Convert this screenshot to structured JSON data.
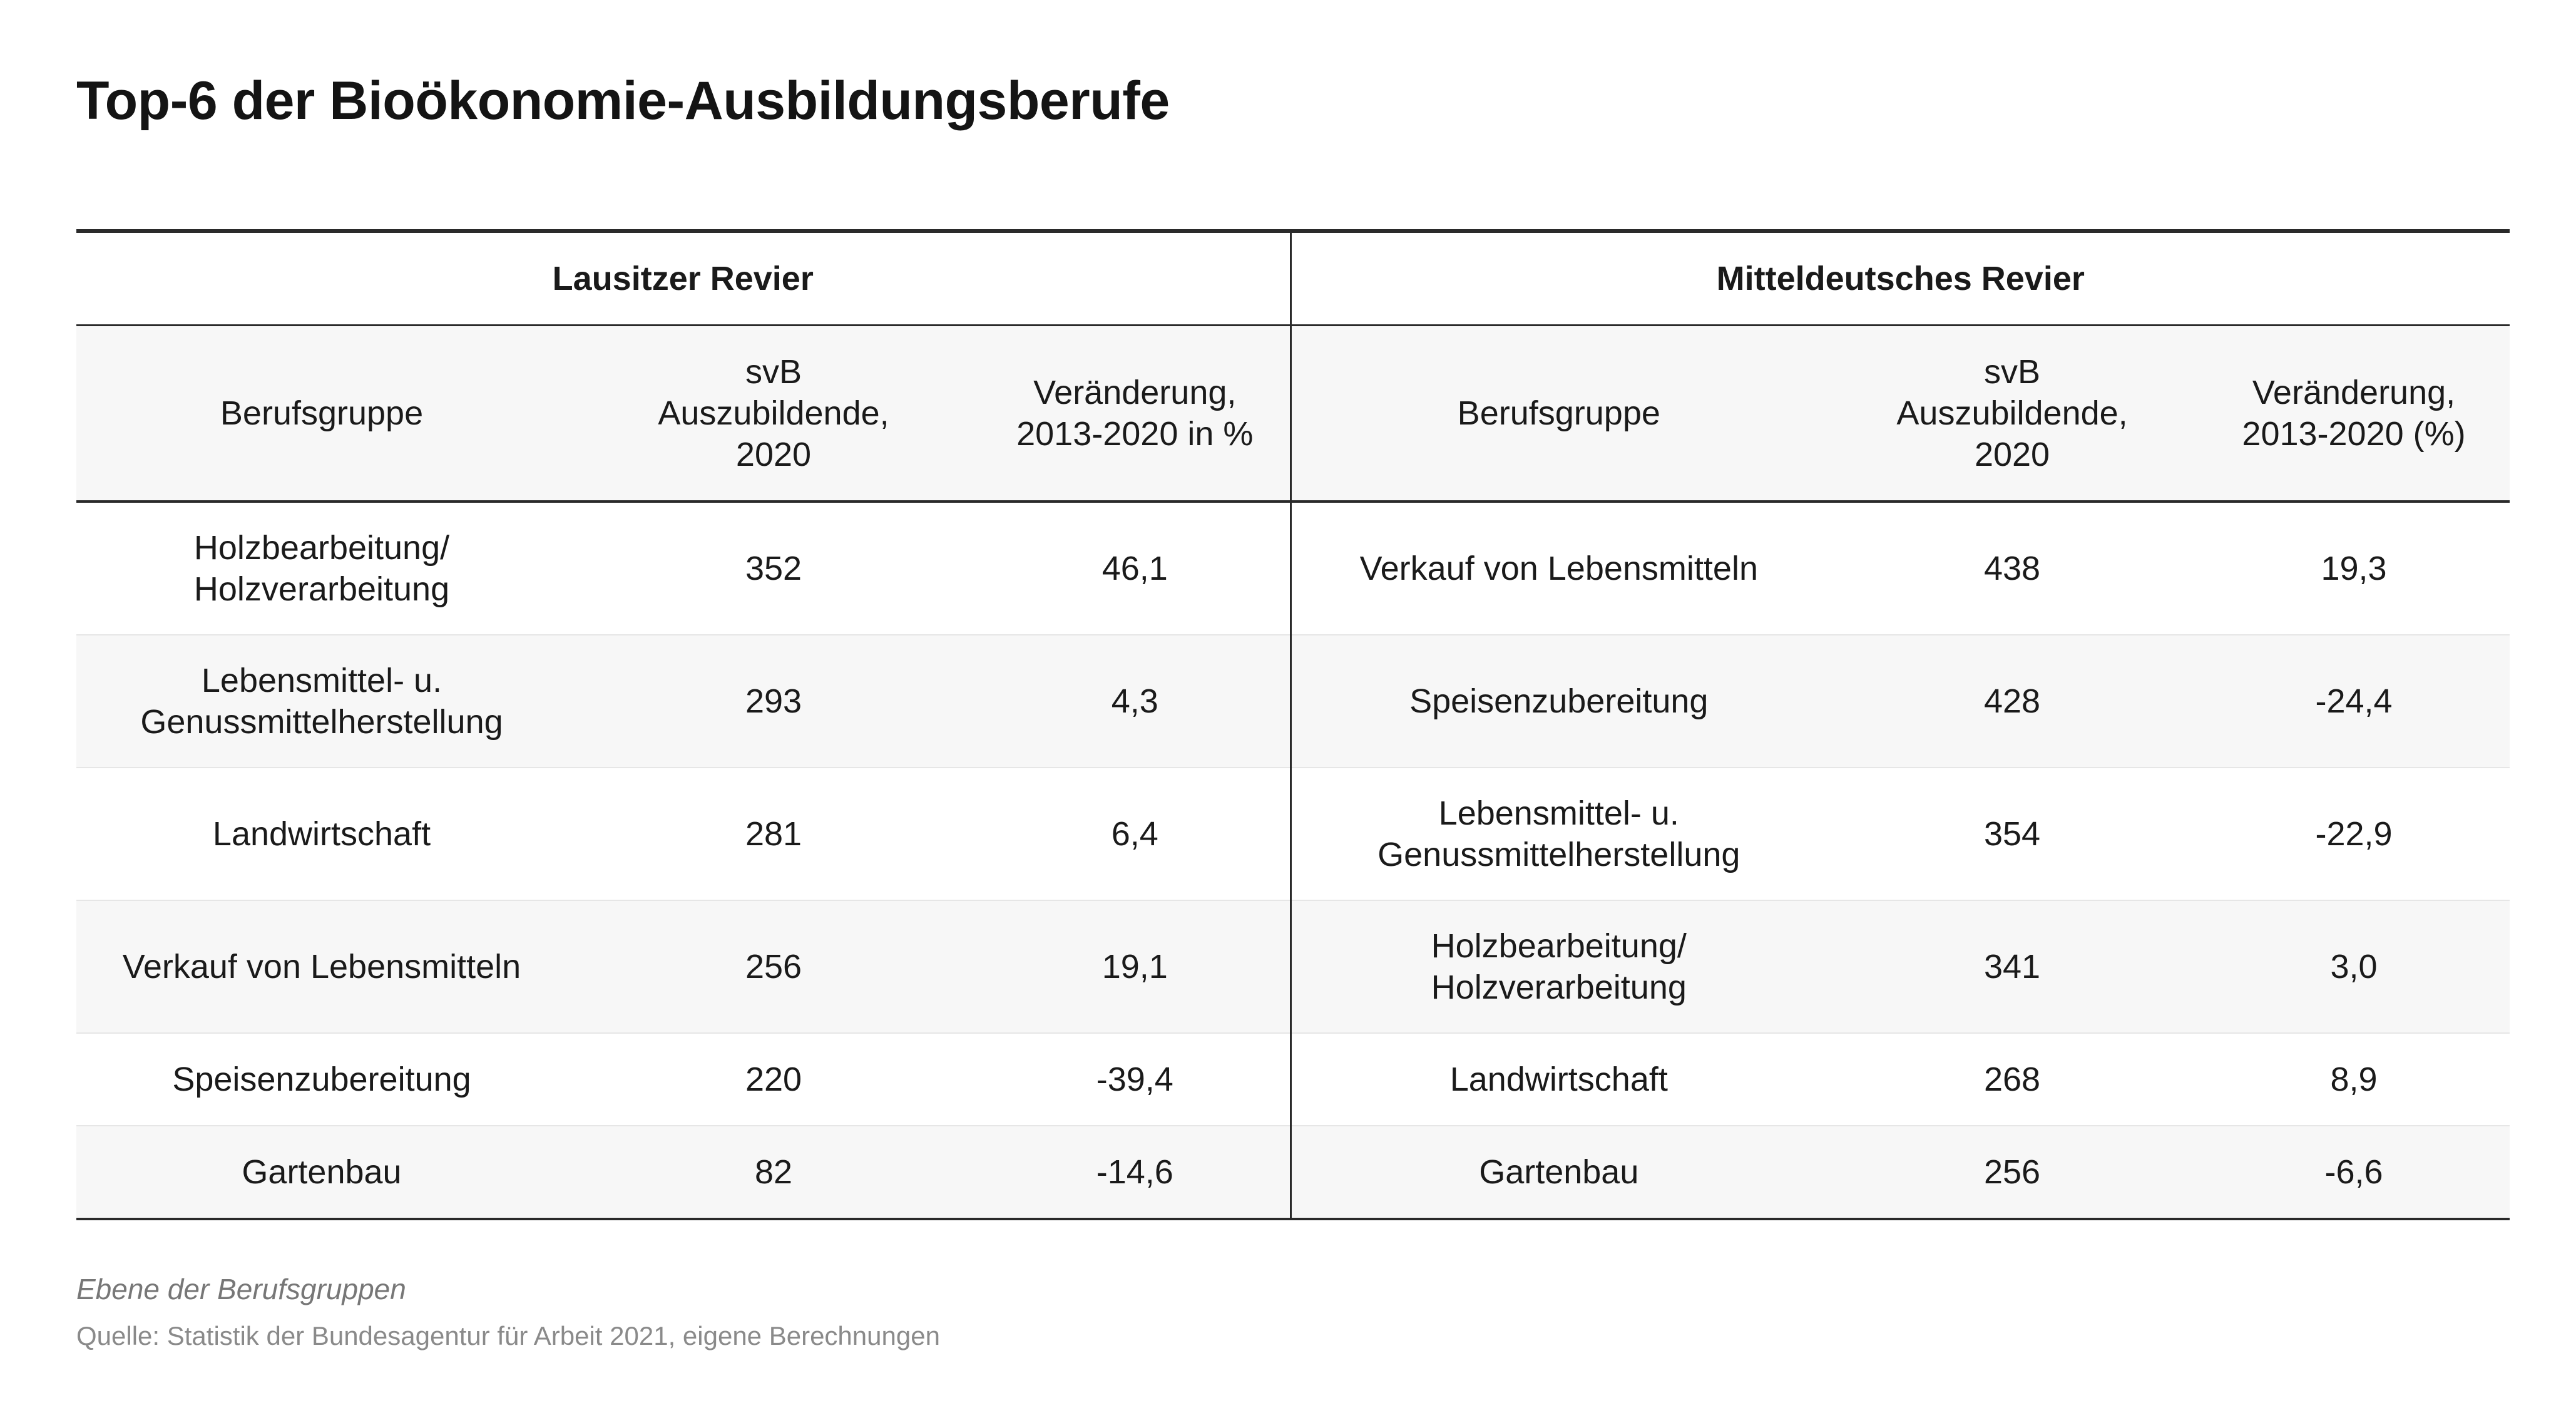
{
  "title": "Top-6 der Bioökonomie-Ausbildungsberufe",
  "groups": [
    "Lausitzer Revier",
    "Mitteldeutsches Revier"
  ],
  "headers": {
    "left": [
      "Berufsgruppe",
      "svB\nAuszubildende,\n2020",
      "Veränderung,\n2013-2020 in %"
    ],
    "right": [
      "Berufsgruppe",
      "svB\nAuszubildende,\n2020",
      "Veränderung,\n2013-2020 (%)"
    ]
  },
  "rows": [
    {
      "left": [
        "Holzbearbeitung/\nHolzverarbeitung",
        "352",
        "46,1"
      ],
      "right": [
        "Verkauf von Lebensmitteln",
        "438",
        "19,3"
      ]
    },
    {
      "left": [
        "Lebensmittel- u.\nGenussmittelherstellung",
        "293",
        "4,3"
      ],
      "right": [
        "Speisenzubereitung",
        "428",
        "-24,4"
      ]
    },
    {
      "left": [
        "Landwirtschaft",
        "281",
        "6,4"
      ],
      "right": [
        "Lebensmittel- u.\nGenussmittelherstellung",
        "354",
        "-22,9"
      ]
    },
    {
      "left": [
        "Verkauf von Lebensmitteln",
        "256",
        "19,1"
      ],
      "right": [
        "Holzbearbeitung/\nHolzverarbeitung",
        "341",
        "3,0"
      ]
    },
    {
      "left": [
        "Speisenzubereitung",
        "220",
        "-39,4"
      ],
      "right": [
        "Landwirtschaft",
        "268",
        "8,9"
      ]
    },
    {
      "left": [
        "Gartenbau",
        "82",
        "-14,6"
      ],
      "right": [
        "Gartenbau",
        "256",
        "-6,6"
      ]
    }
  ],
  "footer": {
    "note": "Ebene der Berufsgruppen",
    "source": "Quelle: Statistik der Bundesagentur für Arbeit 2021, eigene Berechnungen"
  }
}
